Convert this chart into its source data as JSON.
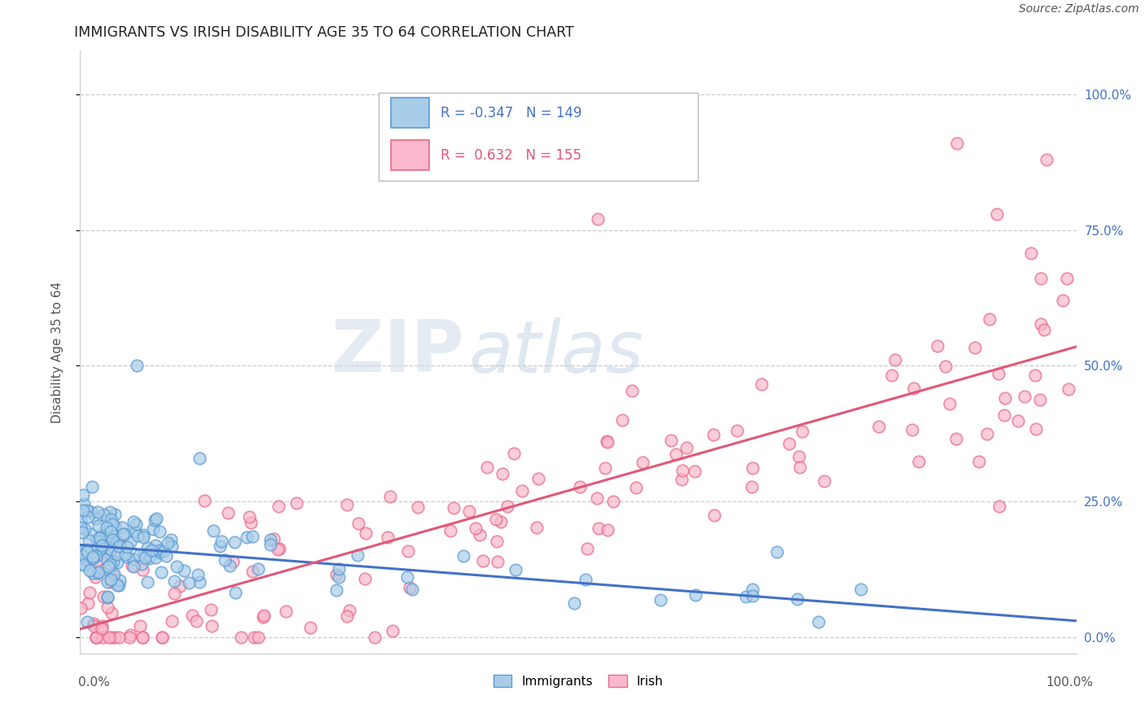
{
  "title": "IMMIGRANTS VS IRISH DISABILITY AGE 35 TO 64 CORRELATION CHART",
  "source_text": "Source: ZipAtlas.com",
  "ylabel": "Disability Age 35 to 64",
  "ytick_values": [
    0,
    25,
    50,
    75,
    100
  ],
  "xlim": [
    0,
    100
  ],
  "ylim": [
    -3,
    108
  ],
  "immigrants_R": -0.347,
  "immigrants_N": 149,
  "irish_R": 0.632,
  "irish_N": 155,
  "immigrants_fill": "#a8cde8",
  "irish_fill": "#f9b8cb",
  "immigrants_edge": "#5b9bd5",
  "irish_edge": "#e8698a",
  "immigrants_line_color": "#4472c6",
  "irish_line_color": "#e05878",
  "legend_label_immigrants": "Immigrants",
  "legend_label_irish": "Irish",
  "watermark_zip": "ZIP",
  "watermark_atlas": "atlas",
  "background_color": "#ffffff",
  "grid_color": "#cccccc",
  "title_color": "#222222",
  "axis_label_color": "#555555",
  "right_axis_color": "#4472c6",
  "source_color": "#555555",
  "imm_slope": -0.14,
  "imm_intercept": 17.0,
  "irish_slope": 0.52,
  "irish_intercept": 1.5
}
